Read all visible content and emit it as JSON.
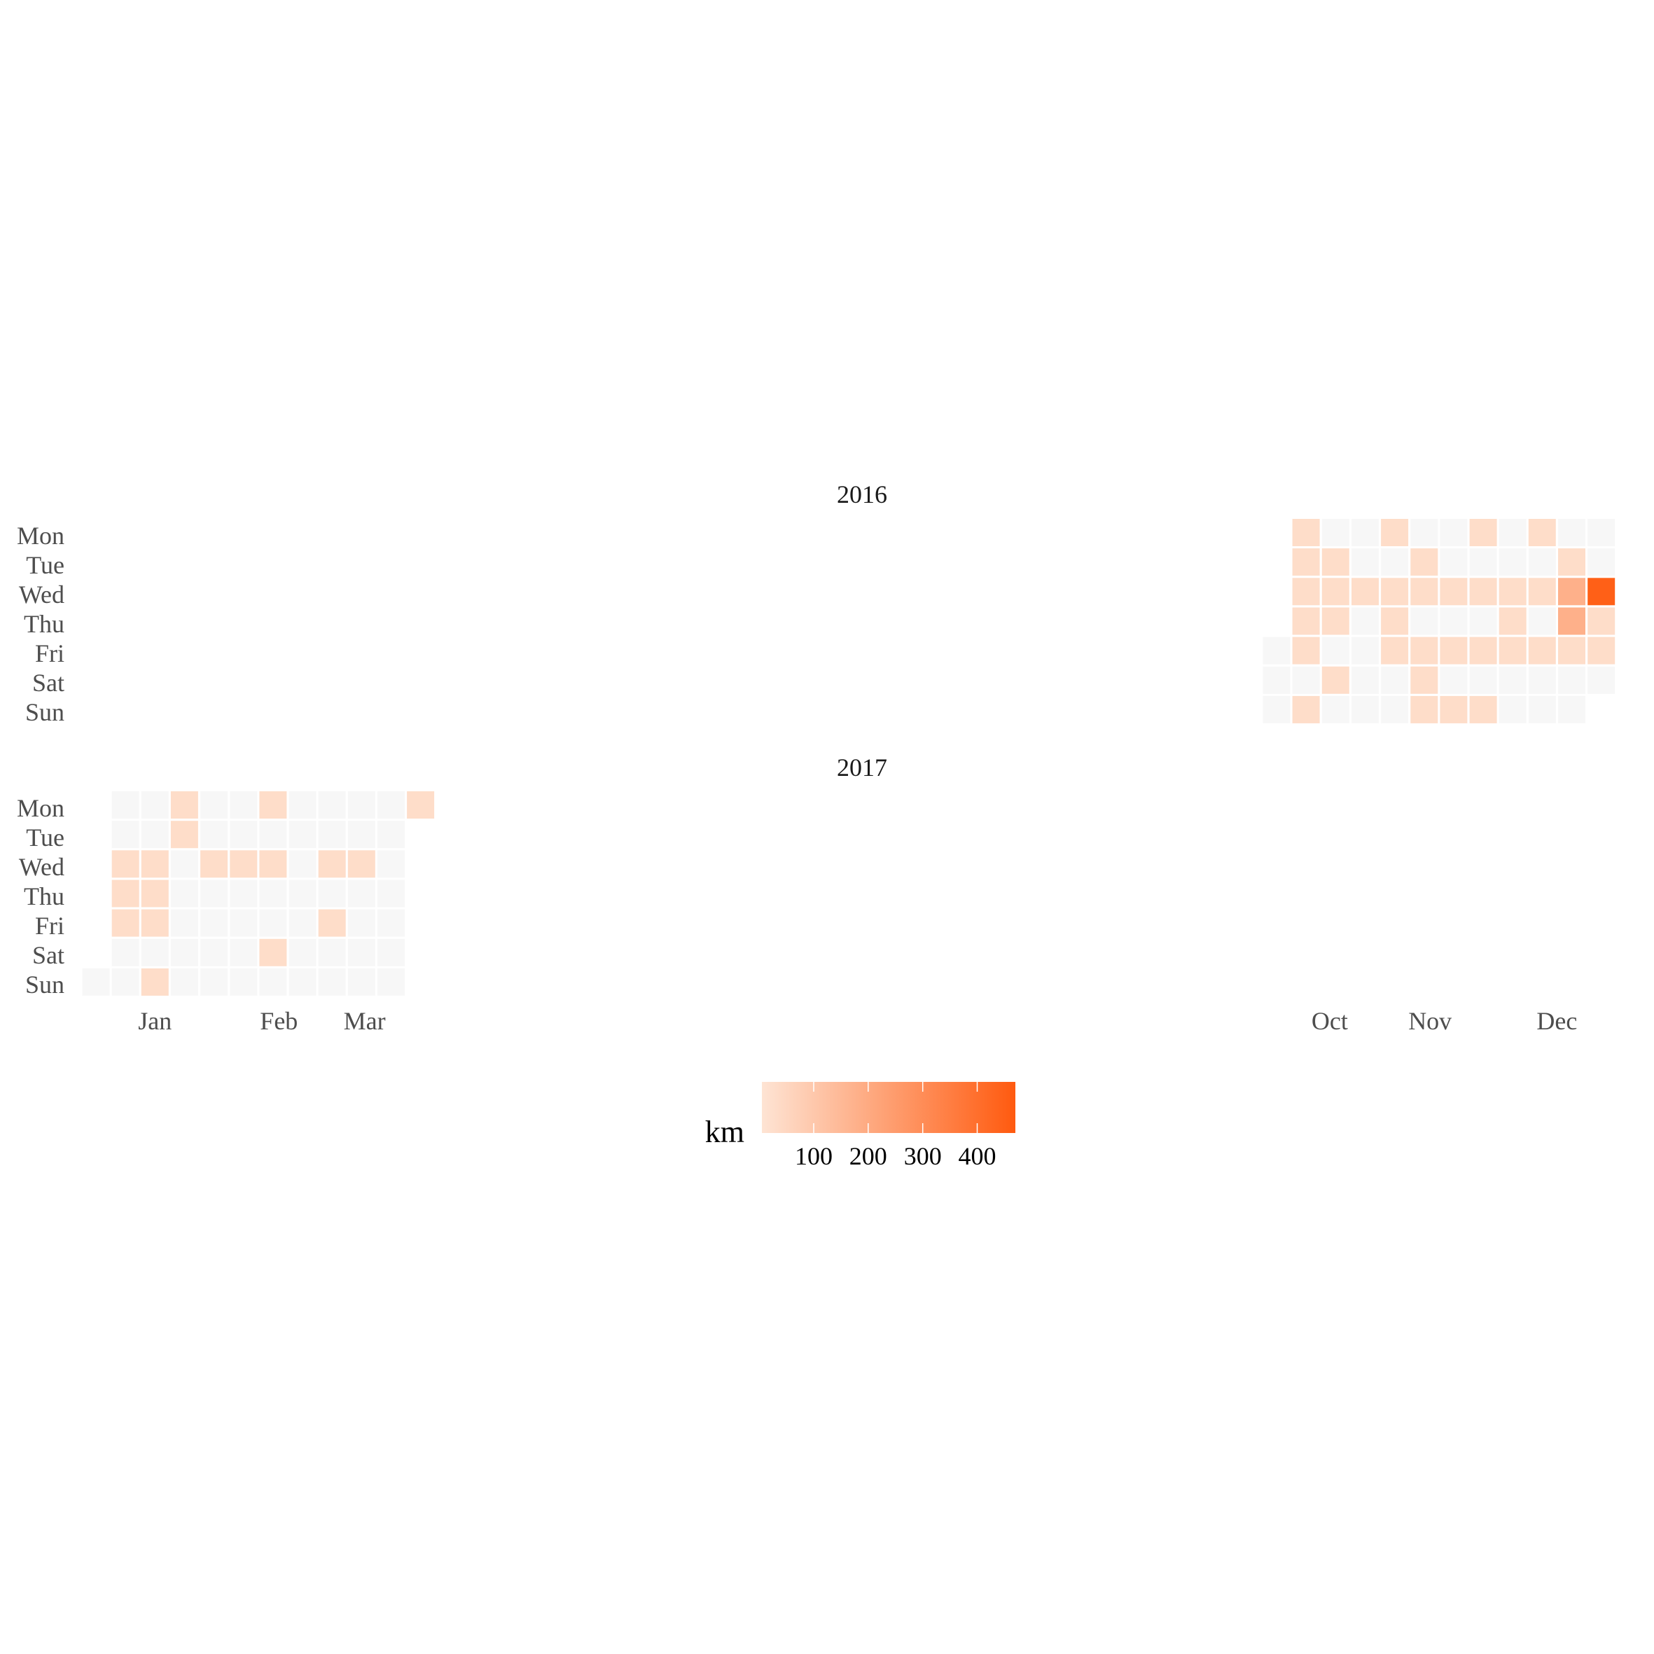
{
  "chart_data": {
    "type": "heatmap",
    "subtype": "calendar",
    "weekdays": [
      "Mon",
      "Tue",
      "Wed",
      "Thu",
      "Fri",
      "Sat",
      "Sun"
    ],
    "month_ticks": [
      {
        "label": "Jan",
        "week": 3
      },
      {
        "label": "Feb",
        "week": 7.2
      },
      {
        "label": "Mar",
        "week": 10.1
      },
      {
        "label": "Oct",
        "week": 42.8
      },
      {
        "label": "Nov",
        "week": 46.2
      },
      {
        "label": "Dec",
        "week": 50.5
      }
    ],
    "legend": {
      "title": "km",
      "ticks": [
        100,
        200,
        300,
        400
      ],
      "range": [
        5,
        470
      ],
      "color_low": "#fee4d4",
      "color_high": "#ff5a0f",
      "position": "bottom"
    },
    "empty_color": "#f7f7f7",
    "facets": [
      {
        "title": "2016",
        "cells": [
          [
            41,
            4,
            0
          ],
          [
            41,
            5,
            0
          ],
          [
            41,
            6,
            0
          ],
          [
            42,
            0,
            30
          ],
          [
            42,
            1,
            30
          ],
          [
            42,
            2,
            30
          ],
          [
            42,
            3,
            30
          ],
          [
            42,
            4,
            30
          ],
          [
            42,
            5,
            0
          ],
          [
            42,
            6,
            30
          ],
          [
            43,
            0,
            0
          ],
          [
            43,
            1,
            30
          ],
          [
            43,
            2,
            30
          ],
          [
            43,
            3,
            30
          ],
          [
            43,
            4,
            0
          ],
          [
            43,
            5,
            30
          ],
          [
            43,
            6,
            0
          ],
          [
            44,
            0,
            0
          ],
          [
            44,
            1,
            0
          ],
          [
            44,
            2,
            30
          ],
          [
            44,
            3,
            0
          ],
          [
            44,
            4,
            0
          ],
          [
            44,
            5,
            0
          ],
          [
            44,
            6,
            0
          ],
          [
            45,
            0,
            30
          ],
          [
            45,
            1,
            0
          ],
          [
            45,
            2,
            30
          ],
          [
            45,
            3,
            30
          ],
          [
            45,
            4,
            30
          ],
          [
            45,
            5,
            0
          ],
          [
            45,
            6,
            0
          ],
          [
            46,
            0,
            0
          ],
          [
            46,
            1,
            30
          ],
          [
            46,
            2,
            30
          ],
          [
            46,
            3,
            0
          ],
          [
            46,
            4,
            30
          ],
          [
            46,
            5,
            30
          ],
          [
            46,
            6,
            30
          ],
          [
            47,
            0,
            0
          ],
          [
            47,
            1,
            0
          ],
          [
            47,
            2,
            30
          ],
          [
            47,
            3,
            0
          ],
          [
            47,
            4,
            30
          ],
          [
            47,
            5,
            0
          ],
          [
            47,
            6,
            30
          ],
          [
            48,
            0,
            30
          ],
          [
            48,
            1,
            0
          ],
          [
            48,
            2,
            30
          ],
          [
            48,
            3,
            0
          ],
          [
            48,
            4,
            30
          ],
          [
            48,
            5,
            0
          ],
          [
            48,
            6,
            30
          ],
          [
            49,
            0,
            0
          ],
          [
            49,
            1,
            0
          ],
          [
            49,
            2,
            30
          ],
          [
            49,
            3,
            30
          ],
          [
            49,
            4,
            30
          ],
          [
            49,
            5,
            0
          ],
          [
            49,
            6,
            0
          ],
          [
            50,
            0,
            30
          ],
          [
            50,
            1,
            0
          ],
          [
            50,
            2,
            30
          ],
          [
            50,
            3,
            0
          ],
          [
            50,
            4,
            30
          ],
          [
            50,
            5,
            0
          ],
          [
            50,
            6,
            0
          ],
          [
            51,
            0,
            0
          ],
          [
            51,
            1,
            30
          ],
          [
            51,
            2,
            180
          ],
          [
            51,
            3,
            180
          ],
          [
            51,
            4,
            30
          ],
          [
            51,
            5,
            0
          ],
          [
            51,
            6,
            0
          ],
          [
            52,
            0,
            0
          ],
          [
            52,
            1,
            0
          ],
          [
            52,
            2,
            450
          ],
          [
            52,
            3,
            30
          ],
          [
            52,
            4,
            30
          ],
          [
            52,
            5,
            0
          ]
        ]
      },
      {
        "title": "2017",
        "cells": [
          [
            1,
            6,
            0
          ],
          [
            2,
            0,
            0
          ],
          [
            2,
            1,
            0
          ],
          [
            2,
            2,
            30
          ],
          [
            2,
            3,
            30
          ],
          [
            2,
            4,
            30
          ],
          [
            2,
            5,
            0
          ],
          [
            2,
            6,
            0
          ],
          [
            3,
            0,
            0
          ],
          [
            3,
            1,
            0
          ],
          [
            3,
            2,
            30
          ],
          [
            3,
            3,
            30
          ],
          [
            3,
            4,
            30
          ],
          [
            3,
            5,
            0
          ],
          [
            3,
            6,
            30
          ],
          [
            4,
            0,
            30
          ],
          [
            4,
            1,
            30
          ],
          [
            4,
            2,
            0
          ],
          [
            4,
            3,
            0
          ],
          [
            4,
            4,
            0
          ],
          [
            4,
            5,
            0
          ],
          [
            4,
            6,
            0
          ],
          [
            5,
            0,
            0
          ],
          [
            5,
            1,
            0
          ],
          [
            5,
            2,
            30
          ],
          [
            5,
            3,
            0
          ],
          [
            5,
            4,
            0
          ],
          [
            5,
            5,
            0
          ],
          [
            5,
            6,
            0
          ],
          [
            6,
            0,
            0
          ],
          [
            6,
            1,
            0
          ],
          [
            6,
            2,
            30
          ],
          [
            6,
            3,
            0
          ],
          [
            6,
            4,
            0
          ],
          [
            6,
            5,
            0
          ],
          [
            6,
            6,
            0
          ],
          [
            7,
            0,
            30
          ],
          [
            7,
            1,
            0
          ],
          [
            7,
            2,
            30
          ],
          [
            7,
            3,
            0
          ],
          [
            7,
            4,
            0
          ],
          [
            7,
            5,
            30
          ],
          [
            7,
            6,
            0
          ],
          [
            8,
            0,
            0
          ],
          [
            8,
            1,
            0
          ],
          [
            8,
            2,
            0
          ],
          [
            8,
            3,
            0
          ],
          [
            8,
            4,
            0
          ],
          [
            8,
            5,
            0
          ],
          [
            8,
            6,
            0
          ],
          [
            9,
            0,
            0
          ],
          [
            9,
            1,
            0
          ],
          [
            9,
            2,
            30
          ],
          [
            9,
            3,
            0
          ],
          [
            9,
            4,
            30
          ],
          [
            9,
            5,
            0
          ],
          [
            9,
            6,
            0
          ],
          [
            10,
            0,
            0
          ],
          [
            10,
            1,
            0
          ],
          [
            10,
            2,
            30
          ],
          [
            10,
            3,
            0
          ],
          [
            10,
            4,
            0
          ],
          [
            10,
            5,
            0
          ],
          [
            10,
            6,
            0
          ],
          [
            11,
            0,
            0
          ],
          [
            11,
            1,
            0
          ],
          [
            11,
            2,
            0
          ],
          [
            11,
            3,
            0
          ],
          [
            11,
            4,
            0
          ],
          [
            11,
            5,
            0
          ],
          [
            11,
            6,
            0
          ],
          [
            12,
            0,
            30
          ]
        ]
      }
    ]
  }
}
